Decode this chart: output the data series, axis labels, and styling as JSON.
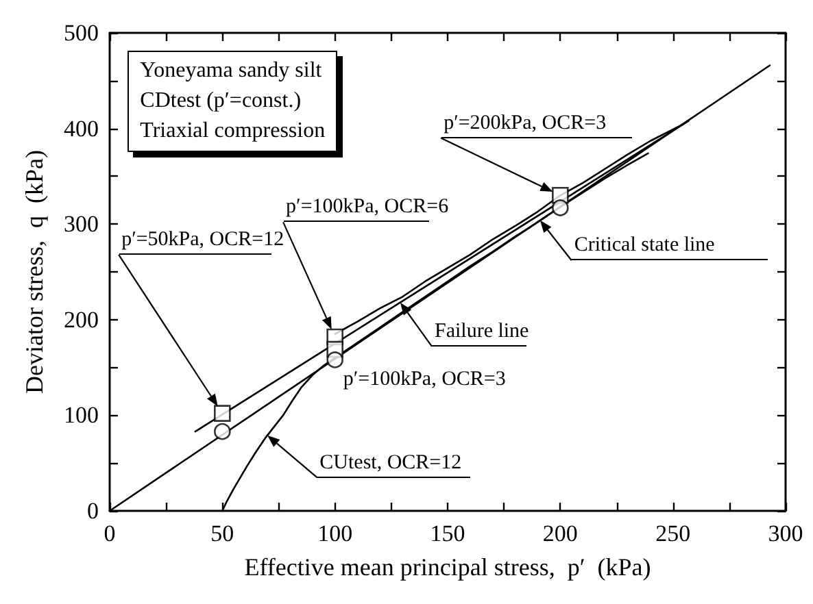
{
  "chart_data": {
    "type": "line",
    "xlabel": "Effective mean principal stress,  p′  (kPa)",
    "ylabel": "Deviator stress,  q  (kPa)",
    "xlim": [
      0,
      300
    ],
    "xticks": [
      0,
      {
        "value": 25,
        "label": null
      },
      50,
      {
        "value": 75,
        "label": null
      },
      100,
      {
        "value": 125,
        "label": null
      },
      150,
      {
        "value": 175,
        "label": null
      },
      200,
      {
        "value": 225,
        "label": null
      },
      250,
      {
        "value": 275,
        "label": null
      },
      300
    ],
    "ylim": [
      0,
      500
    ],
    "yticks": [
      0,
      {
        "value": 50,
        "label": null
      },
      100,
      {
        "value": 150,
        "label": null
      },
      200,
      {
        "value": 250,
        "label": null
      },
      300,
      {
        "value": 350,
        "label": null
      },
      400,
      {
        "value": 450,
        "label": null
      },
      500
    ],
    "annotations": [
      "Yoneyama sandy silt",
      "CDtest (p′=const.)",
      "Triaxial compression",
      "p′=50kPa, OCR=12",
      "p′=100kPa, OCR=6",
      "p′=200kPa, OCR=3",
      {
        "text": "p′=100kPa, OCR=3",
        "x": 100,
        "y": 158
      },
      {
        "text": "Critical state line",
        "x": 191,
        "y": 304
      },
      {
        "text": "Failure line",
        "x": 129,
        "y": 218
      },
      {
        "text": "CUtest, OCR=12",
        "x": 70,
        "y": 79
      }
    ],
    "series": [
      {
        "type": "line",
        "marker": "none",
        "color": "#000000",
        "x": [
          0,
          293
        ],
        "values": [
          0,
          466
        ]
      },
      {
        "type": "line",
        "marker": "none",
        "color": "#000000",
        "x": [
          38,
          257
        ],
        "values": [
          83,
          408
        ]
      },
      {
        "type": "line",
        "marker": "none",
        "color": "#000000",
        "x": [
          50,
          52,
          55,
          58,
          61,
          65,
          69,
          73,
          77,
          81,
          85,
          90,
          95,
          100,
          110,
          120,
          130,
          140,
          150,
          160,
          170,
          180,
          190,
          200,
          210,
          220,
          230,
          239
        ],
        "values": [
          0,
          10,
          23,
          35,
          47,
          62,
          76,
          88,
          100,
          115,
          129,
          142,
          152,
          160,
          176,
          192,
          208,
          224,
          240,
          256,
          271,
          287,
          302,
          318,
          333,
          348,
          362,
          374
        ]
      },
      {
        "type": "line",
        "marker": "none",
        "color": "#000000",
        "x": [
          100,
          110,
          120,
          130,
          140,
          150,
          160,
          170,
          180,
          190,
          200,
          210,
          220,
          230,
          240,
          255
        ],
        "values": [
          185,
          198,
          212,
          224,
          240,
          254,
          268,
          284,
          298,
          313,
          330,
          343,
          358,
          373,
          387,
          405
        ]
      },
      {
        "type": "scatter",
        "marker": "square",
        "color": "#000000",
        "x": [
          50,
          100,
          100,
          200
        ],
        "values": [
          102,
          182,
          169,
          330
        ]
      },
      {
        "type": "scatter",
        "marker": "circle",
        "color": "#000000",
        "x": [
          50,
          100,
          200
        ],
        "values": [
          83,
          158,
          317
        ]
      }
    ]
  }
}
